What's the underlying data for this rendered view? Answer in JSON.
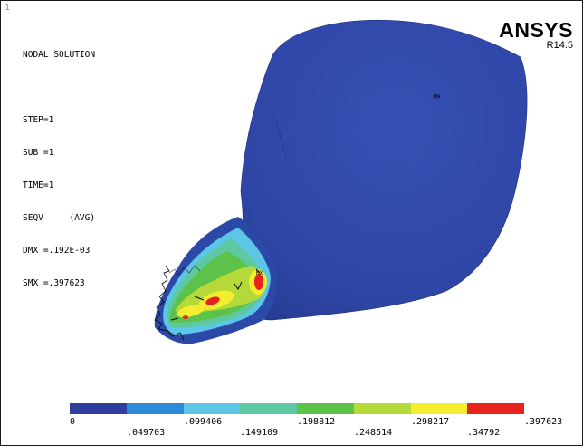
{
  "window_number": "1",
  "info_lines": [
    "NODAL SOLUTION",
    "",
    "STEP=1",
    "SUB =1",
    "TIME=1",
    "SEQV     (AVG)",
    "DMX =.192E-03",
    "SMX =.397623"
  ],
  "logo": {
    "brand": "ANSYS",
    "version": "R14.5"
  },
  "model_labels": {
    "mx": "MX",
    "mn": "MN"
  },
  "legend": {
    "colors": [
      "#2e3f9f",
      "#2c8ad8",
      "#5bc6e5",
      "#5ec8a0",
      "#5cc24a",
      "#b6d93a",
      "#f2ee2e",
      "#e8231d"
    ],
    "ticks_top": [
      "0",
      ".099406",
      ".198812",
      ".298217",
      ".397623"
    ],
    "ticks_bottom": [
      ".049703",
      ".149109",
      ".248514",
      ".34792"
    ]
  },
  "colors": {
    "body_blue": "#2f46a6",
    "body_blue_dark": "#243a8e",
    "background": "#ffffff"
  }
}
